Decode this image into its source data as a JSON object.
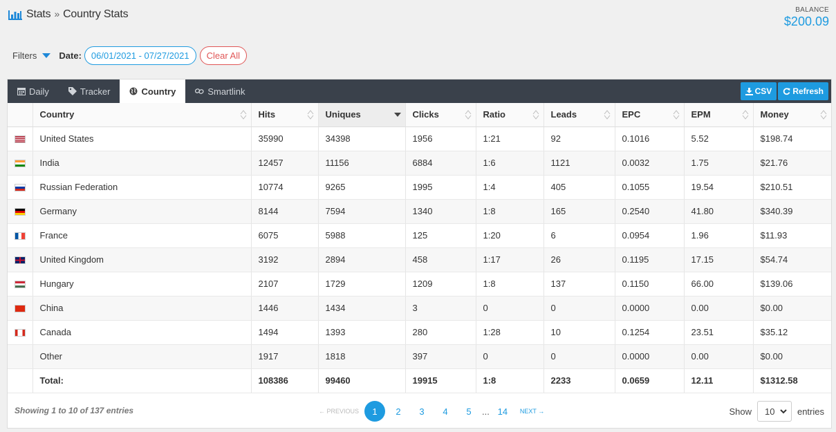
{
  "breadcrumb": {
    "section": "Stats",
    "separator": "»",
    "page": "Country Stats"
  },
  "balance": {
    "label": "BALANCE",
    "value": "$200.09"
  },
  "filters": {
    "label": "Filters",
    "date_label": "Date:",
    "date_range": "06/01/2021 - 07/27/2021",
    "clear_label": "Clear All"
  },
  "tabs": [
    {
      "label": "Daily",
      "icon": "calendar-icon"
    },
    {
      "label": "Tracker",
      "icon": "tag-icon"
    },
    {
      "label": "Country",
      "icon": "globe-icon",
      "active": true
    },
    {
      "label": "Smartlink",
      "icon": "link-icon"
    }
  ],
  "actions": {
    "csv_label": "CSV",
    "refresh_label": "Refresh"
  },
  "table": {
    "columns": [
      "",
      "Country",
      "Hits",
      "Uniques",
      "Clicks",
      "Ratio",
      "Leads",
      "EPC",
      "EPM",
      "Money"
    ],
    "sorted_column": "Uniques",
    "rows": [
      {
        "flag": "us",
        "country": "United States",
        "hits": "35990",
        "uniques": "34398",
        "clicks": "1956",
        "ratio": "1:21",
        "leads": "92",
        "epc": "0.1016",
        "epm": "5.52",
        "money": "$198.74"
      },
      {
        "flag": "in",
        "country": "India",
        "hits": "12457",
        "uniques": "11156",
        "clicks": "6884",
        "ratio": "1:6",
        "leads": "1121",
        "epc": "0.0032",
        "epm": "1.75",
        "money": "$21.76"
      },
      {
        "flag": "ru",
        "country": "Russian Federation",
        "hits": "10774",
        "uniques": "9265",
        "clicks": "1995",
        "ratio": "1:4",
        "leads": "405",
        "epc": "0.1055",
        "epm": "19.54",
        "money": "$210.51"
      },
      {
        "flag": "de",
        "country": "Germany",
        "hits": "8144",
        "uniques": "7594",
        "clicks": "1340",
        "ratio": "1:8",
        "leads": "165",
        "epc": "0.2540",
        "epm": "41.80",
        "money": "$340.39"
      },
      {
        "flag": "fr",
        "country": "France",
        "hits": "6075",
        "uniques": "5988",
        "clicks": "125",
        "ratio": "1:20",
        "leads": "6",
        "epc": "0.0954",
        "epm": "1.96",
        "money": "$11.93"
      },
      {
        "flag": "gb",
        "country": "United Kingdom",
        "hits": "3192",
        "uniques": "2894",
        "clicks": "458",
        "ratio": "1:17",
        "leads": "26",
        "epc": "0.1195",
        "epm": "17.15",
        "money": "$54.74"
      },
      {
        "flag": "hu",
        "country": "Hungary",
        "hits": "2107",
        "uniques": "1729",
        "clicks": "1209",
        "ratio": "1:8",
        "leads": "137",
        "epc": "0.1150",
        "epm": "66.00",
        "money": "$139.06"
      },
      {
        "flag": "cn",
        "country": "China",
        "hits": "1446",
        "uniques": "1434",
        "clicks": "3",
        "ratio": "0",
        "leads": "0",
        "epc": "0.0000",
        "epm": "0.00",
        "money": "$0.00"
      },
      {
        "flag": "ca",
        "country": "Canada",
        "hits": "1494",
        "uniques": "1393",
        "clicks": "280",
        "ratio": "1:28",
        "leads": "10",
        "epc": "0.1254",
        "epm": "23.51",
        "money": "$35.12"
      },
      {
        "flag": "",
        "country": "Other",
        "hits": "1917",
        "uniques": "1818",
        "clicks": "397",
        "ratio": "0",
        "leads": "0",
        "epc": "0.0000",
        "epm": "0.00",
        "money": "$0.00"
      }
    ],
    "total": {
      "label": "Total:",
      "hits": "108386",
      "uniques": "99460",
      "clicks": "19915",
      "ratio": "1:8",
      "leads": "2233",
      "epc": "0.0659",
      "epm": "12.11",
      "money": "$1312.58"
    }
  },
  "footer": {
    "showing": "Showing 1 to 10 of 137 entries",
    "prev_label": "← PREVIOUS",
    "next_label": "NEXT →",
    "pages": [
      "1",
      "2",
      "3",
      "4",
      "5"
    ],
    "ellipsis": "...",
    "last_page": "14",
    "current_page": "1",
    "show_label": "Show",
    "page_size": "10",
    "entries_label": "entries"
  }
}
